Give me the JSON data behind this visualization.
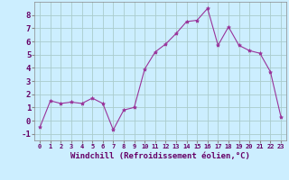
{
  "x": [
    0,
    1,
    2,
    3,
    4,
    5,
    6,
    7,
    8,
    9,
    10,
    11,
    12,
    13,
    14,
    15,
    16,
    17,
    18,
    19,
    20,
    21,
    22,
    23
  ],
  "y": [
    -0.5,
    1.5,
    1.3,
    1.4,
    1.3,
    1.7,
    1.3,
    -0.7,
    0.8,
    1.0,
    3.9,
    5.2,
    5.8,
    6.6,
    7.5,
    7.6,
    8.5,
    5.7,
    7.1,
    5.7,
    5.3,
    5.1,
    3.7,
    0.3
  ],
  "line_color": "#993399",
  "marker": "*",
  "marker_size": 3,
  "bg_color": "#cceeff",
  "grid_color": "#aacccc",
  "xlabel": "Windchill (Refroidissement éolien,°C)",
  "xlabel_fontsize": 6.5,
  "yticks": [
    -1,
    0,
    1,
    2,
    3,
    4,
    5,
    6,
    7,
    8
  ],
  "xticks": [
    0,
    1,
    2,
    3,
    4,
    5,
    6,
    7,
    8,
    9,
    10,
    11,
    12,
    13,
    14,
    15,
    16,
    17,
    18,
    19,
    20,
    21,
    22,
    23
  ],
  "ylim": [
    -1.5,
    9.0
  ],
  "xlim": [
    -0.5,
    23.5
  ]
}
